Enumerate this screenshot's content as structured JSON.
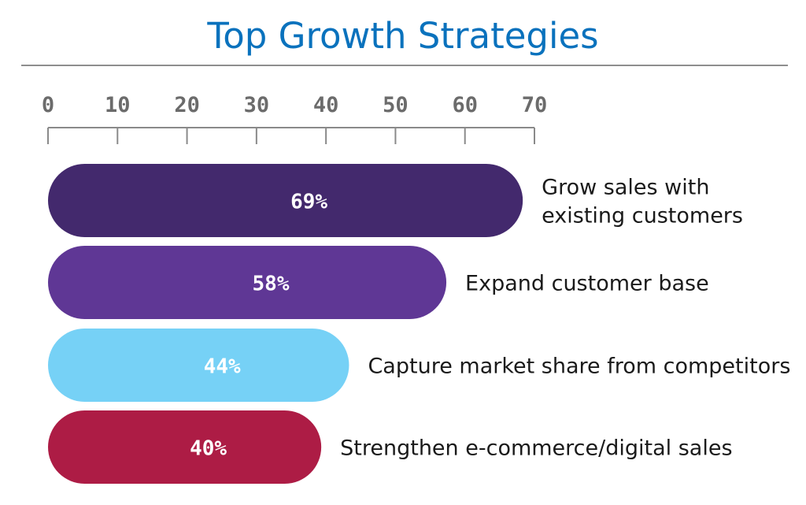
{
  "title": "Top Growth Strategies",
  "chart_data": {
    "type": "bar",
    "orientation": "horizontal",
    "title": "Top Growth Strategies",
    "xlabel": "",
    "ylabel": "",
    "xlim": [
      0,
      70
    ],
    "x_ticks": [
      "0",
      "10",
      "20",
      "30",
      "40",
      "50",
      "60",
      "70"
    ],
    "x_tick_values": [
      0,
      10,
      20,
      30,
      40,
      50,
      60,
      70
    ],
    "grid": false,
    "categories": [
      [
        "Grow sales with",
        "existing customers"
      ],
      [
        "Expand customer base"
      ],
      [
        "Capture market share from competitors"
      ],
      [
        "Strengthen e-commerce/digital sales"
      ]
    ],
    "values": [
      69,
      58,
      44,
      40
    ],
    "value_labels": [
      "69%",
      "58%",
      "44%",
      "40%"
    ],
    "colors": [
      "#43296d",
      "#5f3795",
      "#76d1f6",
      "#ad1c45"
    ]
  }
}
